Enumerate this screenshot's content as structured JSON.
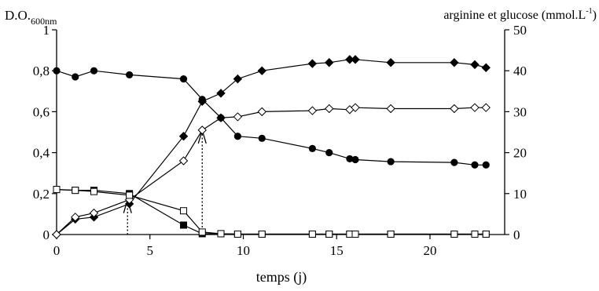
{
  "chart_data": {
    "type": "line",
    "title": "",
    "xlabel": "temps (j)",
    "ylabel_left_main": "D.O.",
    "ylabel_left_sub": "600nm",
    "ylabel_right_main": "arginine et glucose (mmol.L",
    "ylabel_right_sup": "-1",
    "ylabel_right_close": ")",
    "xlim": [
      0,
      24
    ],
    "ylim_left": [
      0,
      1
    ],
    "ylim_right": [
      0,
      50
    ],
    "xticks": [
      0,
      5,
      10,
      15,
      20
    ],
    "yticks_left": [
      "0",
      "0,2",
      "0,4",
      "0,6",
      "0,8",
      "1"
    ],
    "yticks_right": [
      "0",
      "10",
      "20",
      "30",
      "40",
      "50"
    ],
    "grid": false,
    "legend": "none",
    "series": [
      {
        "marker": "filled-diamond",
        "axis": "left",
        "x": [
          0,
          1,
          2,
          3.9,
          6.8,
          7.8,
          8.8,
          9.7,
          11,
          13.7,
          14.6,
          15.7,
          16,
          17.9,
          21.3,
          22.4,
          23
        ],
        "y": [
          0,
          0.075,
          0.085,
          0.15,
          0.48,
          0.65,
          0.69,
          0.76,
          0.8,
          0.835,
          0.84,
          0.855,
          0.855,
          0.84,
          0.84,
          0.83,
          0.815
        ]
      },
      {
        "marker": "open-diamond",
        "axis": "left",
        "x": [
          0,
          1,
          2,
          3.9,
          6.8,
          7.8,
          8.8,
          9.7,
          11,
          13.7,
          14.6,
          15.7,
          16,
          17.9,
          21.3,
          22.4,
          23
        ],
        "y": [
          0,
          0.085,
          0.105,
          0.17,
          0.36,
          0.51,
          0.57,
          0.575,
          0.6,
          0.605,
          0.615,
          0.61,
          0.62,
          0.615,
          0.615,
          0.62,
          0.62
        ]
      },
      {
        "marker": "filled-circle",
        "axis": "right",
        "x": [
          0,
          1,
          2,
          3.9,
          6.8,
          7.8,
          8.8,
          9.7,
          11,
          13.7,
          14.6,
          15.7,
          16,
          17.9,
          21.3,
          22.4,
          23
        ],
        "y": [
          40,
          38.5,
          40,
          39,
          38,
          33,
          28.5,
          24,
          23.5,
          21,
          20,
          18.5,
          18.3,
          17.8,
          17.6,
          17,
          17
        ]
      },
      {
        "marker": "filled-square",
        "axis": "right",
        "x": [
          0,
          1,
          2,
          3.9,
          6.8,
          7.8,
          8.8,
          9.7,
          11,
          13.7,
          14.6,
          15.7,
          16,
          17.9,
          21.3,
          22.4,
          23
        ],
        "y": [
          11,
          10.8,
          10.8,
          10,
          2.3,
          0.2,
          0.2,
          0.1,
          0.1,
          0.1,
          0.1,
          0.1,
          0.1,
          0.1,
          0.1,
          0.1,
          0.1
        ]
      },
      {
        "marker": "open-square",
        "axis": "right",
        "x": [
          0,
          1,
          2,
          3.9,
          6.8,
          7.8,
          8.8,
          9.7,
          11,
          13.7,
          14.6,
          15.7,
          16,
          17.9,
          21.3,
          22.4,
          23
        ],
        "y": [
          11,
          10.8,
          10.5,
          9.6,
          5.8,
          0.6,
          0.2,
          0.1,
          0.1,
          0.1,
          0.1,
          0.1,
          0.1,
          0.1,
          0.1,
          0.1,
          0.1
        ]
      }
    ],
    "annotations": [
      {
        "type": "dotted-arrow",
        "x": 3.8,
        "y_from": 0,
        "y_to": 0.17
      },
      {
        "type": "dotted-arrow",
        "x": 7.8,
        "y_from": 0,
        "y_to": 0.51
      }
    ]
  }
}
